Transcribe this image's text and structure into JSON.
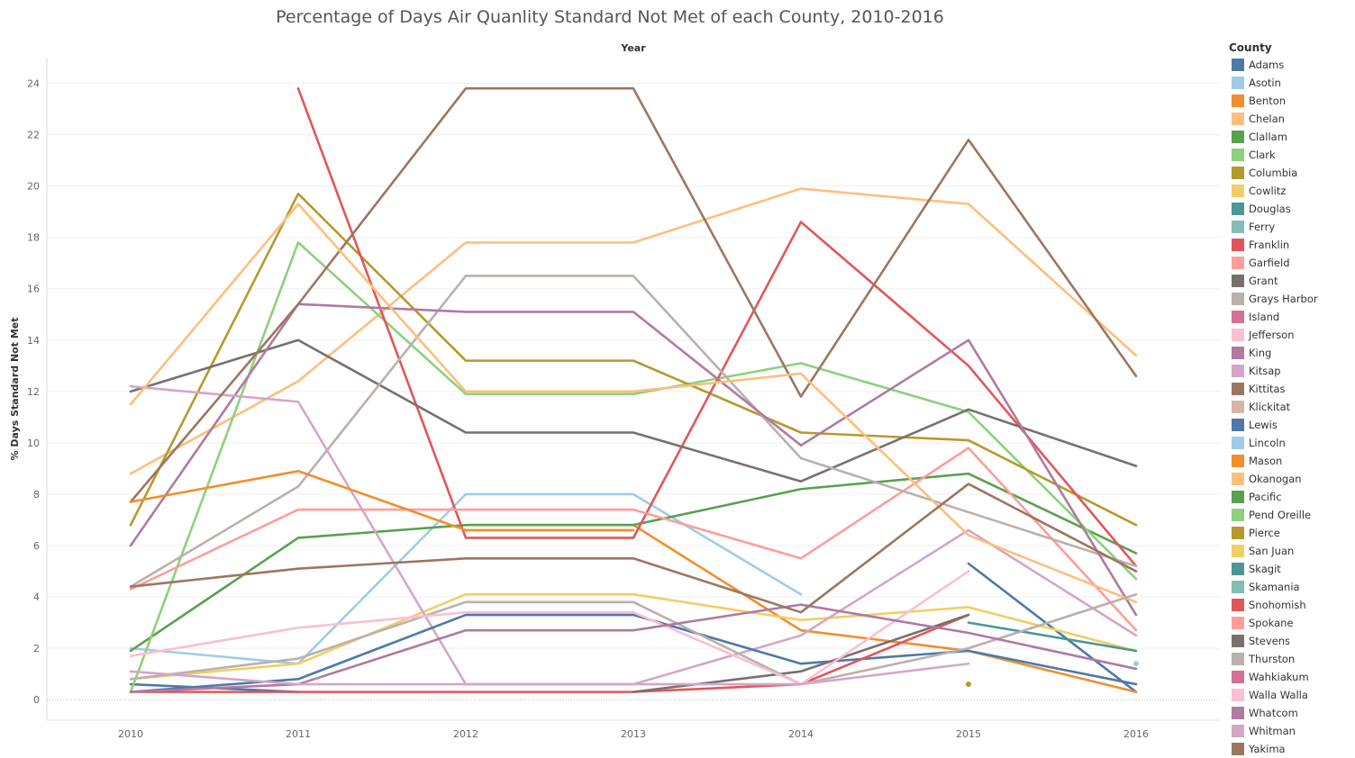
{
  "chart_data": {
    "type": "line",
    "title": "Percentage of Days Air Quanlity Standard Not Met of each County, 2010-2016",
    "xlabel": "Year",
    "ylabel": "% Days Standard Not Met",
    "x": [
      "2010",
      "2011",
      "2012",
      "2013",
      "2014",
      "2015",
      "2016"
    ],
    "ylim": [
      -0.8,
      25
    ],
    "yticks": [
      0,
      2,
      4,
      6,
      8,
      10,
      12,
      14,
      16,
      18,
      20,
      22,
      24
    ],
    "grid": true,
    "legend_title": "County",
    "legend_position": "right",
    "series": [
      {
        "name": "Adams",
        "color": "#4e79a7",
        "values": [
          0.6,
          0.3,
          null,
          null,
          null,
          5.3,
          0.3
        ]
      },
      {
        "name": "Asotin",
        "color": "#a0cbe8",
        "values": [
          2.0,
          1.4,
          8.0,
          8.0,
          4.1,
          null,
          1.4
        ]
      },
      {
        "name": "Benton",
        "color": "#f28e2b",
        "values": [
          null,
          null,
          6.8,
          6.8,
          2.7,
          1.9,
          0.3
        ]
      },
      {
        "name": "Chelan",
        "color": "#ffbe7d",
        "values": [
          8.8,
          12.4,
          17.8,
          17.8,
          19.9,
          19.3,
          13.4
        ]
      },
      {
        "name": "Clallam",
        "color": "#59a14f",
        "values": [
          1.9,
          6.3,
          6.8,
          6.8,
          8.2,
          8.8,
          5.7
        ]
      },
      {
        "name": "Clark",
        "color": "#8cd17d",
        "values": [
          0.3,
          17.8,
          11.9,
          11.9,
          13.1,
          11.2,
          4.7
        ]
      },
      {
        "name": "Columbia",
        "color": "#b6992d",
        "values": [
          6.8,
          19.7,
          13.2,
          13.2,
          10.4,
          10.1,
          6.8
        ]
      },
      {
        "name": "Cowlitz",
        "color": "#f1ce63",
        "values": [
          0.8,
          1.4,
          4.1,
          4.1,
          3.1,
          3.6,
          1.9
        ]
      },
      {
        "name": "Douglas",
        "color": "#499894",
        "values": [
          null,
          null,
          null,
          null,
          null,
          null,
          null
        ]
      },
      {
        "name": "Ferry",
        "color": "#86bcb6",
        "values": [
          null,
          null,
          null,
          null,
          null,
          null,
          null
        ]
      },
      {
        "name": "Franklin",
        "color": "#e15759",
        "values": [
          null,
          23.8,
          6.3,
          6.3,
          18.6,
          13.0,
          5.2
        ]
      },
      {
        "name": "Garfield",
        "color": "#ff9d9a",
        "values": [
          4.3,
          7.4,
          7.4,
          7.4,
          5.5,
          9.8,
          2.7
        ]
      },
      {
        "name": "Grant",
        "color": "#79706e",
        "values": [
          12.0,
          14.0,
          10.4,
          10.4,
          8.5,
          11.3,
          9.1
        ]
      },
      {
        "name": "Grays Harbor",
        "color": "#bab0ac",
        "values": [
          4.4,
          8.3,
          16.5,
          16.5,
          9.4,
          7.3,
          5.2
        ]
      },
      {
        "name": "Island",
        "color": "#d37295",
        "values": [
          null,
          null,
          null,
          null,
          null,
          null,
          null
        ]
      },
      {
        "name": "Jefferson",
        "color": "#fabfd2",
        "values": [
          null,
          null,
          null,
          null,
          null,
          null,
          null
        ]
      },
      {
        "name": "King",
        "color": "#b07aa1",
        "values": [
          6.0,
          15.4,
          15.1,
          15.1,
          9.9,
          14.0,
          3.3
        ]
      },
      {
        "name": "Kitsap",
        "color": "#d4a6c8",
        "values": [
          12.2,
          11.6,
          0.6,
          0.6,
          2.5,
          6.6,
          2.5
        ]
      },
      {
        "name": "Kittitas",
        "color": "#9d7660",
        "values": [
          7.7,
          15.4,
          23.8,
          23.8,
          11.8,
          21.8,
          12.6
        ]
      },
      {
        "name": "Klickitat",
        "color": "#d7b5a6",
        "values": [
          null,
          null,
          null,
          null,
          null,
          null,
          null
        ]
      },
      {
        "name": "Lewis",
        "color": "#4e79a7",
        "values": [
          0.3,
          0.8,
          3.3,
          3.3,
          1.4,
          1.9,
          0.6
        ]
      },
      {
        "name": "Lincoln",
        "color": "#a0cbe8",
        "values": [
          null,
          null,
          null,
          null,
          null,
          null,
          null
        ]
      },
      {
        "name": "Mason",
        "color": "#f28e2b",
        "values": [
          7.7,
          8.9,
          6.6,
          6.6,
          null,
          null,
          null
        ]
      },
      {
        "name": "Okanogan",
        "color": "#ffbe7d",
        "values": [
          11.5,
          19.3,
          12.0,
          12.0,
          12.7,
          6.4,
          3.8
        ]
      },
      {
        "name": "Pacific",
        "color": "#59a14f",
        "values": [
          null,
          null,
          null,
          null,
          null,
          null,
          null
        ]
      },
      {
        "name": "Pend Oreille",
        "color": "#8cd17d",
        "values": [
          null,
          null,
          null,
          null,
          null,
          null,
          null
        ]
      },
      {
        "name": "Pierce",
        "color": "#b6992d",
        "values": [
          null,
          null,
          null,
          null,
          null,
          0.6,
          null
        ]
      },
      {
        "name": "San Juan",
        "color": "#f1ce63",
        "values": [
          null,
          null,
          null,
          null,
          null,
          null,
          null
        ]
      },
      {
        "name": "Skagit",
        "color": "#499894",
        "values": [
          null,
          null,
          null,
          null,
          null,
          3.0,
          1.9
        ]
      },
      {
        "name": "Skamania",
        "color": "#86bcb6",
        "values": [
          null,
          null,
          null,
          null,
          null,
          null,
          null
        ]
      },
      {
        "name": "Snohomish",
        "color": "#e15759",
        "values": [
          0.3,
          0.3,
          0.3,
          0.3,
          0.6,
          3.3,
          null
        ]
      },
      {
        "name": "Spokane",
        "color": "#ff9d9a",
        "values": [
          null,
          null,
          null,
          null,
          null,
          null,
          null
        ]
      },
      {
        "name": "Stevens",
        "color": "#79706e",
        "values": [
          null,
          null,
          null,
          0.3,
          1.1,
          3.3,
          null
        ]
      },
      {
        "name": "Thurston",
        "color": "#bab0ac",
        "values": [
          0.8,
          1.6,
          3.8,
          3.8,
          0.6,
          2.0,
          4.1
        ]
      },
      {
        "name": "Wahkiakum",
        "color": "#d37295",
        "values": [
          null,
          null,
          null,
          null,
          null,
          null,
          null
        ]
      },
      {
        "name": "Walla Walla",
        "color": "#fabfd2",
        "values": [
          1.7,
          2.8,
          3.4,
          3.4,
          0.6,
          5.0,
          null
        ]
      },
      {
        "name": "Whatcom",
        "color": "#b07aa1",
        "values": [
          0.3,
          0.6,
          2.7,
          2.7,
          3.7,
          2.6,
          1.2
        ]
      },
      {
        "name": "Whitman",
        "color": "#d4a6c8",
        "values": [
          1.1,
          0.6,
          0.6,
          0.6,
          0.6,
          1.4,
          null
        ]
      },
      {
        "name": "Yakima",
        "color": "#9d7660",
        "values": [
          4.4,
          5.1,
          5.5,
          5.5,
          3.4,
          8.4,
          5.0
        ]
      }
    ]
  }
}
